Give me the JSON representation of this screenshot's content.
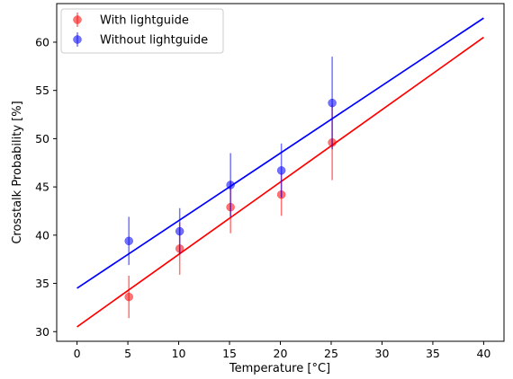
{
  "chart_data": {
    "type": "scatter",
    "xlabel": "Temperature [°C]",
    "ylabel": "Crosstalk Probability [%]",
    "xlim": [
      -2,
      42
    ],
    "ylim": [
      29,
      64
    ],
    "xticks": [
      0,
      5,
      10,
      15,
      20,
      25,
      30,
      35,
      40
    ],
    "yticks": [
      30,
      35,
      40,
      45,
      50,
      55,
      60
    ],
    "grid": false,
    "legend_position": "top-left",
    "series": [
      {
        "name": "With lightguide",
        "color": "#ff0000",
        "points": [
          {
            "x": 5.1,
            "y": 33.6,
            "err": 2.2
          },
          {
            "x": 10.1,
            "y": 38.6,
            "err": 2.7
          },
          {
            "x": 15.1,
            "y": 42.9,
            "err": 2.7
          },
          {
            "x": 20.1,
            "y": 44.2,
            "err": 2.2
          },
          {
            "x": 25.1,
            "y": 49.6,
            "err": 3.9
          }
        ],
        "fit": {
          "x": [
            0,
            40
          ],
          "y": [
            30.5,
            60.5
          ]
        }
      },
      {
        "name": "Without lightguide",
        "color": "#0000ff",
        "points": [
          {
            "x": 5.1,
            "y": 39.4,
            "err": 2.5
          },
          {
            "x": 10.1,
            "y": 40.4,
            "err": 2.4
          },
          {
            "x": 15.1,
            "y": 45.2,
            "err": 3.3
          },
          {
            "x": 20.1,
            "y": 46.7,
            "err": 2.8
          },
          {
            "x": 25.1,
            "y": 53.7,
            "err": 4.8
          }
        ],
        "fit": {
          "x": [
            0,
            40
          ],
          "y": [
            34.5,
            62.5
          ]
        }
      }
    ]
  }
}
